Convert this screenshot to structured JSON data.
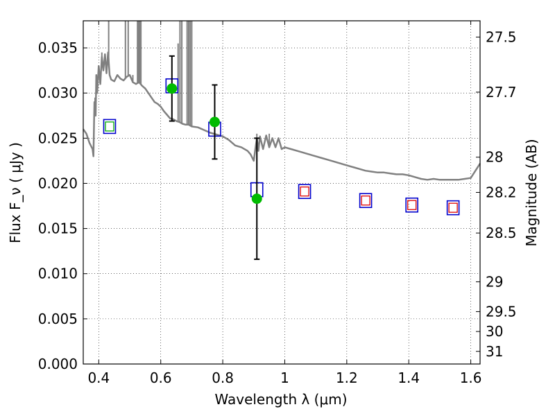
{
  "chart_data": {
    "type": "scatter",
    "xlabel": "Wavelength  λ (μm)",
    "ylabel": "Flux  F_ν  ( μJy )",
    "y2label": "Magnitude (AB)",
    "xlim": [
      0.35,
      1.63
    ],
    "ylim": [
      0.0,
      0.038
    ],
    "grid": true,
    "grid_style": "dotted",
    "x_ticks": [
      0.4,
      0.6,
      0.8,
      1.0,
      1.2,
      1.4,
      1.6
    ],
    "x_tick_labels": [
      "0.4",
      "0.6",
      "0.8",
      "1",
      "1.2",
      "1.4",
      "1.6"
    ],
    "y_ticks": [
      0.0,
      0.005,
      0.01,
      0.015,
      0.02,
      0.025,
      0.03,
      0.035
    ],
    "y_tick_labels": [
      "0.000",
      "0.005",
      "0.010",
      "0.015",
      "0.020",
      "0.025",
      "0.030",
      "0.035"
    ],
    "y2_ticks": [
      {
        "label": "27.5",
        "flux": 0.0362
      },
      {
        "label": "27.7",
        "flux": 0.0301
      },
      {
        "label": "28",
        "flux": 0.0229
      },
      {
        "label": "28.2",
        "flux": 0.019
      },
      {
        "label": "28.5",
        "flux": 0.0145
      },
      {
        "label": "29",
        "flux": 0.0091
      },
      {
        "label": "29.5",
        "flux": 0.0058
      },
      {
        "label": "30",
        "flux": 0.0036
      },
      {
        "label": "31",
        "flux": 0.0014
      }
    ],
    "model_spectrum": {
      "color": "#808080",
      "points": [
        [
          0.35,
          0.026
        ],
        [
          0.36,
          0.0255
        ],
        [
          0.37,
          0.0245
        ],
        [
          0.38,
          0.0238
        ],
        [
          0.383,
          0.023
        ],
        [
          0.386,
          0.029
        ],
        [
          0.39,
          0.0275
        ],
        [
          0.392,
          0.032
        ],
        [
          0.395,
          0.03
        ],
        [
          0.4,
          0.033
        ],
        [
          0.405,
          0.031
        ],
        [
          0.41,
          0.034
        ],
        [
          0.415,
          0.0325
        ],
        [
          0.42,
          0.0343
        ],
        [
          0.425,
          0.0322
        ],
        [
          0.43,
          0.0345
        ],
        [
          0.435,
          0.032
        ],
        [
          0.44,
          0.0315
        ],
        [
          0.45,
          0.0313
        ],
        [
          0.46,
          0.032
        ],
        [
          0.47,
          0.0316
        ],
        [
          0.48,
          0.0314
        ],
        [
          0.49,
          0.0318
        ],
        [
          0.5,
          0.032
        ],
        [
          0.51,
          0.0312
        ],
        [
          0.52,
          0.031
        ],
        [
          0.53,
          0.0312
        ],
        [
          0.54,
          0.0308
        ],
        [
          0.55,
          0.0305
        ],
        [
          0.56,
          0.03
        ],
        [
          0.57,
          0.0295
        ],
        [
          0.58,
          0.029
        ],
        [
          0.59,
          0.0288
        ],
        [
          0.6,
          0.0285
        ],
        [
          0.61,
          0.028
        ],
        [
          0.62,
          0.0276
        ],
        [
          0.63,
          0.0272
        ],
        [
          0.64,
          0.0271
        ],
        [
          0.65,
          0.0269
        ],
        [
          0.66,
          0.0268
        ],
        [
          0.67,
          0.0266
        ],
        [
          0.68,
          0.0265
        ],
        [
          0.69,
          0.0265
        ],
        [
          0.7,
          0.0263
        ],
        [
          0.72,
          0.0262
        ],
        [
          0.74,
          0.0259
        ],
        [
          0.76,
          0.0256
        ],
        [
          0.78,
          0.0254
        ],
        [
          0.8,
          0.0252
        ],
        [
          0.82,
          0.0248
        ],
        [
          0.84,
          0.0242
        ],
        [
          0.86,
          0.024
        ],
        [
          0.88,
          0.0236
        ],
        [
          0.89,
          0.0232
        ],
        [
          0.9,
          0.0225
        ],
        [
          0.905,
          0.0238
        ],
        [
          0.91,
          0.025
        ],
        [
          0.915,
          0.0236
        ],
        [
          0.92,
          0.0252
        ],
        [
          0.93,
          0.0238
        ],
        [
          0.94,
          0.0253
        ],
        [
          0.95,
          0.024
        ],
        [
          0.96,
          0.025
        ],
        [
          0.97,
          0.024
        ],
        [
          0.98,
          0.025
        ],
        [
          0.99,
          0.0238
        ],
        [
          1.0,
          0.024
        ],
        [
          1.02,
          0.0238
        ],
        [
          1.04,
          0.0236
        ],
        [
          1.06,
          0.0234
        ],
        [
          1.08,
          0.0232
        ],
        [
          1.1,
          0.023
        ],
        [
          1.12,
          0.0228
        ],
        [
          1.14,
          0.0226
        ],
        [
          1.16,
          0.0224
        ],
        [
          1.18,
          0.0222
        ],
        [
          1.2,
          0.022
        ],
        [
          1.22,
          0.0218
        ],
        [
          1.24,
          0.0216
        ],
        [
          1.26,
          0.0214
        ],
        [
          1.28,
          0.0213
        ],
        [
          1.3,
          0.0212
        ],
        [
          1.32,
          0.0212
        ],
        [
          1.34,
          0.0211
        ],
        [
          1.36,
          0.021
        ],
        [
          1.38,
          0.021
        ],
        [
          1.4,
          0.0209
        ],
        [
          1.42,
          0.0207
        ],
        [
          1.44,
          0.0205
        ],
        [
          1.46,
          0.0204
        ],
        [
          1.48,
          0.0205
        ],
        [
          1.5,
          0.0204
        ],
        [
          1.52,
          0.0204
        ],
        [
          1.54,
          0.0204
        ],
        [
          1.56,
          0.0204
        ],
        [
          1.58,
          0.0205
        ],
        [
          1.6,
          0.0206
        ],
        [
          1.63,
          0.0222
        ]
      ],
      "spikes": [
        {
          "x": 0.388,
          "top": 0.0295
        },
        {
          "x": 0.41,
          "top": 0.0345
        },
        {
          "x": 0.432,
          "top": 0.038
        },
        {
          "x": 0.486,
          "top": 0.038
        },
        {
          "x": 0.495,
          "top": 0.038
        },
        {
          "x": 0.51,
          "top": 0.032
        },
        {
          "x": 0.525,
          "top": 0.038
        },
        {
          "x": 0.528,
          "top": 0.038
        },
        {
          "x": 0.532,
          "top": 0.038
        },
        {
          "x": 0.536,
          "top": 0.038
        },
        {
          "x": 0.656,
          "top": 0.0355
        },
        {
          "x": 0.662,
          "top": 0.038
        },
        {
          "x": 0.668,
          "top": 0.038
        },
        {
          "x": 0.685,
          "top": 0.038
        },
        {
          "x": 0.69,
          "top": 0.038
        },
        {
          "x": 0.695,
          "top": 0.038
        },
        {
          "x": 0.7,
          "top": 0.038
        },
        {
          "x": 0.91,
          "top": 0.0255
        },
        {
          "x": 0.95,
          "top": 0.0255
        }
      ]
    },
    "series": [
      {
        "kind": "observed",
        "marker": "circle",
        "color": "#00bb00",
        "points": [
          {
            "x": 0.636,
            "y": 0.0305,
            "err": 0.0036
          },
          {
            "x": 0.774,
            "y": 0.0268,
            "err": 0.0041
          },
          {
            "x": 0.91,
            "y": 0.0183,
            "err": 0.0067
          }
        ]
      },
      {
        "kind": "model-band-outer",
        "marker": "square",
        "color": "#0000cc",
        "points": [
          {
            "x": 0.435,
            "y": 0.0263
          },
          {
            "x": 0.636,
            "y": 0.0308
          },
          {
            "x": 0.774,
            "y": 0.026
          },
          {
            "x": 0.91,
            "y": 0.0193
          },
          {
            "x": 1.064,
            "y": 0.0191
          },
          {
            "x": 1.261,
            "y": 0.0181
          },
          {
            "x": 1.41,
            "y": 0.0176
          },
          {
            "x": 1.543,
            "y": 0.0173
          }
        ]
      },
      {
        "kind": "model-band-inner",
        "marker": "square-small",
        "points": [
          {
            "x": 0.435,
            "y": 0.0263,
            "color": "#00aa00"
          },
          {
            "x": 1.064,
            "y": 0.0191,
            "color": "#dd0000"
          },
          {
            "x": 1.261,
            "y": 0.0181,
            "color": "#dd0000"
          },
          {
            "x": 1.41,
            "y": 0.0176,
            "color": "#dd0000"
          },
          {
            "x": 1.543,
            "y": 0.0173,
            "color": "#dd0000"
          }
        ]
      }
    ]
  }
}
